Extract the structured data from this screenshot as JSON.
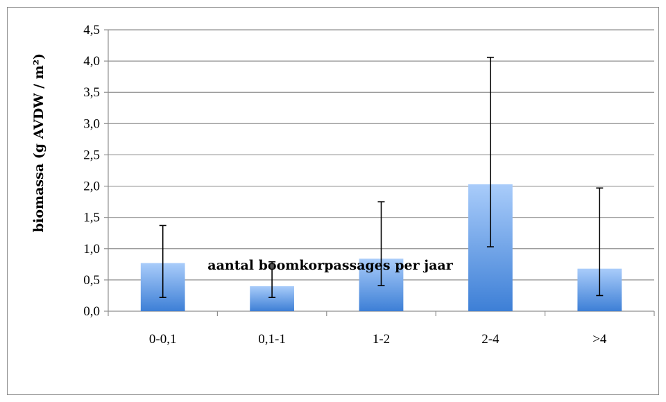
{
  "chart_data": {
    "type": "bar",
    "title": "",
    "xlabel": "aantal boomkorpassages per jaar",
    "ylabel": "biomassa (g AVDW / m²)",
    "categories": [
      "0-0,1",
      "0,1-1",
      "1-2",
      "2-4",
      ">4"
    ],
    "values": [
      0.77,
      0.4,
      0.84,
      2.03,
      0.68
    ],
    "error_low": [
      0.22,
      0.22,
      0.41,
      1.03,
      0.25
    ],
    "error_high": [
      1.37,
      0.79,
      1.75,
      4.06,
      1.97
    ],
    "ylim": [
      0,
      4.5
    ],
    "yticks": [
      "0,0",
      "0,5",
      "1,0",
      "1,5",
      "2,0",
      "2,5",
      "3,0",
      "3,5",
      "4,0",
      "4,5"
    ],
    "ytick_values": [
      0,
      0.5,
      1.0,
      1.5,
      2.0,
      2.5,
      3.0,
      3.5,
      4.0,
      4.5
    ],
    "grid": true,
    "legend": "none",
    "colors": {
      "bar_top": "#a9ccfa",
      "bar_bottom": "#3d7fd6",
      "grid": "#8f8f8f",
      "axis": "#8f8f8f",
      "error_bar": "#000000"
    }
  }
}
